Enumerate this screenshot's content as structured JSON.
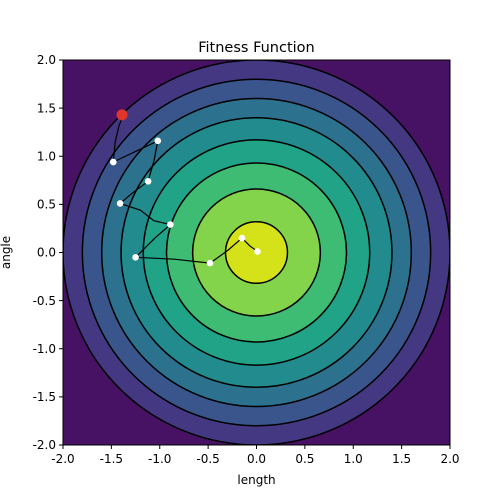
{
  "chart_data": {
    "type": "contour",
    "title": "Fitness Function",
    "xlabel": "length",
    "ylabel": "angle",
    "xlim": [
      -2.0,
      2.0
    ],
    "ylim": [
      -2.0,
      2.0
    ],
    "xticks": [
      "-2.0",
      "-1.5",
      "-1.0",
      "-0.5",
      "0.0",
      "0.5",
      "1.0",
      "1.5",
      "2.0"
    ],
    "yticks": [
      "-2.0",
      "-1.5",
      "-1.0",
      "-0.5",
      "0.0",
      "0.5",
      "1.0",
      "1.5",
      "2.0"
    ],
    "grid": false,
    "contour_radii": [
      0.32,
      0.66,
      0.93,
      1.17,
      1.4,
      1.6,
      1.8,
      2.0
    ],
    "band_colors": [
      "#d5e21a",
      "#84d44b",
      "#3fbc73",
      "#20a386",
      "#228b8d",
      "#2c728e",
      "#39558c",
      "#453882",
      "#471164"
    ],
    "path_segments": [
      [
        [
          -1.38,
          1.42
        ],
        [
          -1.42,
          1.32
        ],
        [
          -1.46,
          1.15
        ],
        [
          -1.48,
          0.94
        ]
      ],
      [
        [
          -1.38,
          1.42
        ],
        [
          -1.4,
          1.43
        ]
      ],
      [
        [
          -1.48,
          0.94
        ],
        [
          -1.25,
          1.05
        ],
        [
          -1.02,
          1.16
        ]
      ],
      [
        [
          -1.02,
          1.16
        ],
        [
          -1.06,
          0.95
        ],
        [
          -1.12,
          0.74
        ]
      ],
      [
        [
          -1.12,
          0.74
        ],
        [
          -1.28,
          0.62
        ],
        [
          -1.41,
          0.51
        ]
      ],
      [
        [
          -1.41,
          0.51
        ],
        [
          -1.2,
          0.44
        ],
        [
          -1.06,
          0.33
        ],
        [
          -0.89,
          0.29
        ]
      ],
      [
        [
          -0.89,
          0.29
        ],
        [
          -1.05,
          0.15
        ],
        [
          -1.25,
          -0.05
        ]
      ],
      [
        [
          -1.25,
          -0.05
        ],
        [
          -0.85,
          -0.07
        ],
        [
          -0.48,
          -0.11
        ]
      ],
      [
        [
          -0.48,
          -0.11
        ],
        [
          -0.3,
          0.02
        ],
        [
          -0.15,
          0.15
        ]
      ],
      [
        [
          -0.15,
          0.15
        ],
        [
          -0.07,
          0.07
        ],
        [
          0.01,
          0.01
        ]
      ]
    ],
    "points": [
      {
        "x": -1.48,
        "y": 0.94
      },
      {
        "x": -1.02,
        "y": 1.16
      },
      {
        "x": -1.12,
        "y": 0.74
      },
      {
        "x": -1.41,
        "y": 0.51
      },
      {
        "x": -0.89,
        "y": 0.29
      },
      {
        "x": -1.25,
        "y": -0.05
      },
      {
        "x": -0.48,
        "y": -0.11
      },
      {
        "x": -0.15,
        "y": 0.15
      },
      {
        "x": 0.01,
        "y": 0.01
      }
    ],
    "start_point": {
      "x": -1.39,
      "y": 1.43
    },
    "start_point_color": "#e0352b",
    "point_color": "#ffffff",
    "path_color": "#000000",
    "contour_line_color": "#000000"
  }
}
